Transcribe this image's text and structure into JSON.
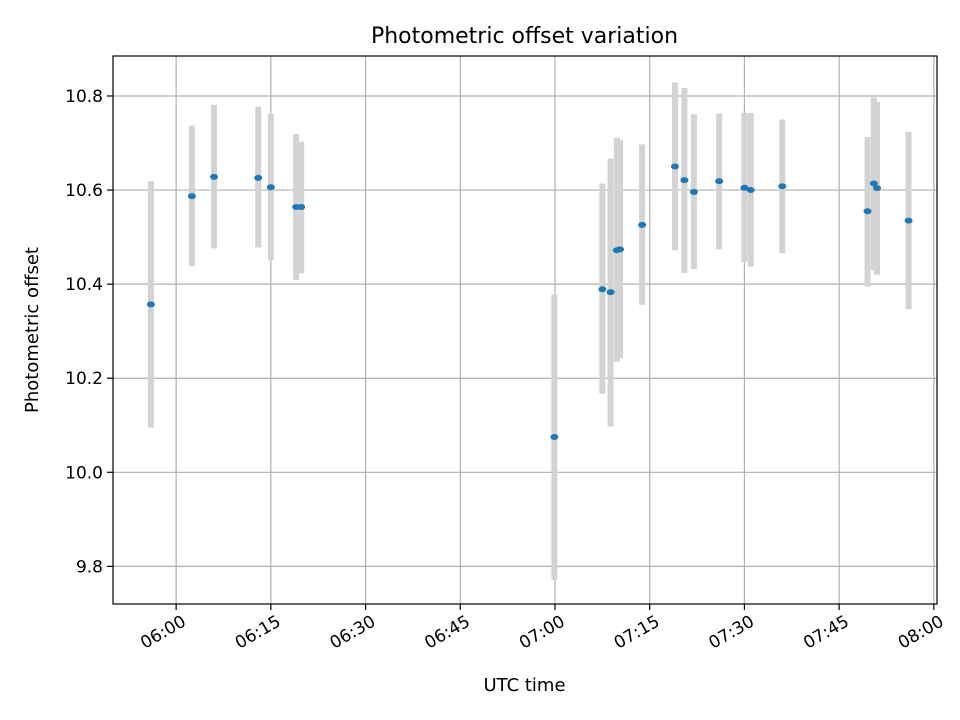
{
  "chart_data": {
    "type": "scatter",
    "title": "Photometric offset variation",
    "xlabel": "UTC time",
    "ylabel": "Photometric offset",
    "x_ticks": [
      "06:00",
      "06:15",
      "06:30",
      "06:45",
      "07:00",
      "07:15",
      "07:30",
      "07:45",
      "08:00"
    ],
    "x_tick_minutes": [
      0,
      15,
      30,
      45,
      60,
      75,
      90,
      105,
      120
    ],
    "xlim_minutes": [
      -10,
      120.5
    ],
    "y_ticks": [
      "9.8",
      "10.0",
      "10.2",
      "10.4",
      "10.6",
      "10.8"
    ],
    "y_tick_values": [
      9.8,
      10.0,
      10.2,
      10.4,
      10.6,
      10.8
    ],
    "ylim": [
      9.72,
      10.885
    ],
    "grid": true,
    "colors": {
      "point": "#1f77b4",
      "errorbar": "#d3d3d3",
      "grid": "#b0b0b0"
    },
    "points": [
      {
        "time": "05:56",
        "y": 10.357,
        "ylow": 10.095,
        "yhigh": 10.619
      },
      {
        "time": "06:02.5",
        "y": 10.587,
        "ylow": 10.438,
        "yhigh": 10.737
      },
      {
        "time": "06:06",
        "y": 10.628,
        "ylow": 10.476,
        "yhigh": 10.781
      },
      {
        "time": "06:13",
        "y": 10.626,
        "ylow": 10.478,
        "yhigh": 10.777
      },
      {
        "time": "06:15",
        "y": 10.606,
        "ylow": 10.451,
        "yhigh": 10.762
      },
      {
        "time": "06:19",
        "y": 10.564,
        "ylow": 10.409,
        "yhigh": 10.719
      },
      {
        "time": "06:19.8",
        "y": 10.564,
        "ylow": 10.423,
        "yhigh": 10.703
      },
      {
        "time": "06:59.9",
        "y": 10.075,
        "ylow": 9.771,
        "yhigh": 10.378
      },
      {
        "time": "07:07.5",
        "y": 10.389,
        "ylow": 10.167,
        "yhigh": 10.614
      },
      {
        "time": "07:08.8",
        "y": 10.383,
        "ylow": 10.097,
        "yhigh": 10.667
      },
      {
        "time": "07:09.8",
        "y": 10.472,
        "ylow": 10.235,
        "yhigh": 10.711
      },
      {
        "time": "07:10.3",
        "y": 10.474,
        "ylow": 10.243,
        "yhigh": 10.706
      },
      {
        "time": "07:13.8",
        "y": 10.526,
        "ylow": 10.356,
        "yhigh": 10.697
      },
      {
        "time": "07:19",
        "y": 10.65,
        "ylow": 10.472,
        "yhigh": 10.829
      },
      {
        "time": "07:20.5",
        "y": 10.621,
        "ylow": 10.424,
        "yhigh": 10.817
      },
      {
        "time": "07:22",
        "y": 10.596,
        "ylow": 10.432,
        "yhigh": 10.761
      },
      {
        "time": "07:26",
        "y": 10.619,
        "ylow": 10.474,
        "yhigh": 10.763
      },
      {
        "time": "07:30",
        "y": 10.605,
        "ylow": 10.447,
        "yhigh": 10.764
      },
      {
        "time": "07:31",
        "y": 10.6,
        "ylow": 10.437,
        "yhigh": 10.764
      },
      {
        "time": "07:36",
        "y": 10.608,
        "ylow": 10.466,
        "yhigh": 10.75
      },
      {
        "time": "07:49.5",
        "y": 10.555,
        "ylow": 10.395,
        "yhigh": 10.713
      },
      {
        "time": "07:50.5",
        "y": 10.614,
        "ylow": 10.429,
        "yhigh": 10.797
      },
      {
        "time": "07:51",
        "y": 10.604,
        "ylow": 10.42,
        "yhigh": 10.787
      },
      {
        "time": "07:56",
        "y": 10.535,
        "ylow": 10.347,
        "yhigh": 10.724
      }
    ]
  }
}
